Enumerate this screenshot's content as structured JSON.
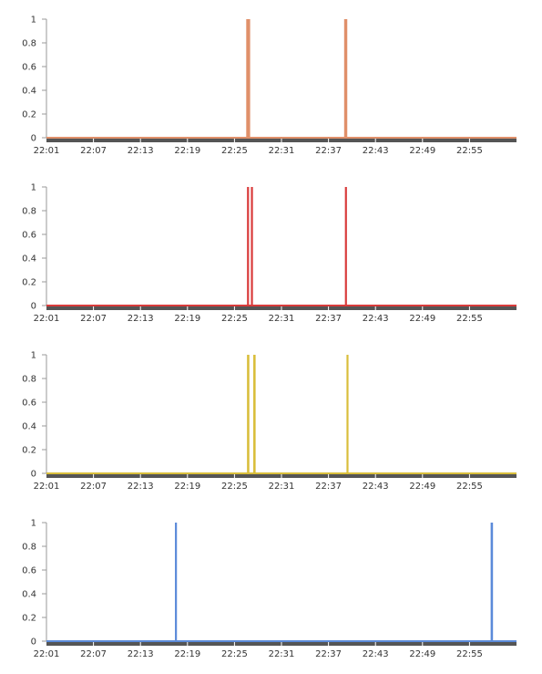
{
  "chart_data": [
    {
      "type": "line",
      "color": "#e0906a",
      "x_ticks": [
        "22:01",
        "22:07",
        "22:13",
        "22:19",
        "22:25",
        "22:31",
        "22:37",
        "22:43",
        "22:49",
        "22:55"
      ],
      "y_ticks": [
        "0",
        "0.2",
        "0.4",
        "0.6",
        "0.8",
        "1"
      ],
      "ylim": [
        0,
        1
      ],
      "xlim": [
        "22:01",
        "23:01"
      ],
      "pulses": [
        {
          "start": "22:26.5",
          "end": "22:27.0",
          "value": 1
        },
        {
          "start": "22:39.0",
          "end": "22:39.4",
          "value": 1
        }
      ],
      "baseline": 0,
      "grid": false
    },
    {
      "type": "line",
      "color": "#d93b3b",
      "x_ticks": [
        "22:01",
        "22:07",
        "22:13",
        "22:19",
        "22:25",
        "22:31",
        "22:37",
        "22:43",
        "22:49",
        "22:55"
      ],
      "y_ticks": [
        "0",
        "0.2",
        "0.4",
        "0.6",
        "0.8",
        "1"
      ],
      "ylim": [
        0,
        1
      ],
      "xlim": [
        "22:01",
        "23:01"
      ],
      "pulses": [
        {
          "start": "22:26.6",
          "end": "22:26.8",
          "value": 1
        },
        {
          "start": "22:27.1",
          "end": "22:27.3",
          "value": 1
        },
        {
          "start": "22:39.1",
          "end": "22:39.3",
          "value": 1
        }
      ],
      "baseline": 0,
      "grid": false
    },
    {
      "type": "line",
      "color": "#d9be3b",
      "x_ticks": [
        "22:01",
        "22:07",
        "22:13",
        "22:19",
        "22:25",
        "22:31",
        "22:37",
        "22:43",
        "22:49",
        "22:55"
      ],
      "y_ticks": [
        "0",
        "0.2",
        "0.4",
        "0.6",
        "0.8",
        "1"
      ],
      "ylim": [
        0,
        1
      ],
      "xlim": [
        "22:01",
        "23:01"
      ],
      "pulses": [
        {
          "start": "22:26.6",
          "end": "22:26.9",
          "value": 1
        },
        {
          "start": "22:27.4",
          "end": "22:27.7",
          "value": 1
        },
        {
          "start": "22:39.3",
          "end": "22:39.5",
          "value": 1
        }
      ],
      "baseline": 0,
      "grid": false
    },
    {
      "type": "line",
      "color": "#5b8ad9",
      "x_ticks": [
        "22:01",
        "22:07",
        "22:13",
        "22:19",
        "22:25",
        "22:31",
        "22:37",
        "22:43",
        "22:49",
        "22:55"
      ],
      "y_ticks": [
        "0",
        "0.2",
        "0.4",
        "0.6",
        "0.8",
        "1"
      ],
      "ylim": [
        0,
        1
      ],
      "xlim": [
        "22:01",
        "23:01"
      ],
      "pulses": [
        {
          "start": "22:17.4",
          "end": "22:17.6",
          "value": 1
        },
        {
          "start": "22:57.7",
          "end": "22:58.0",
          "value": 1
        }
      ],
      "baseline": 0,
      "grid": false
    }
  ]
}
